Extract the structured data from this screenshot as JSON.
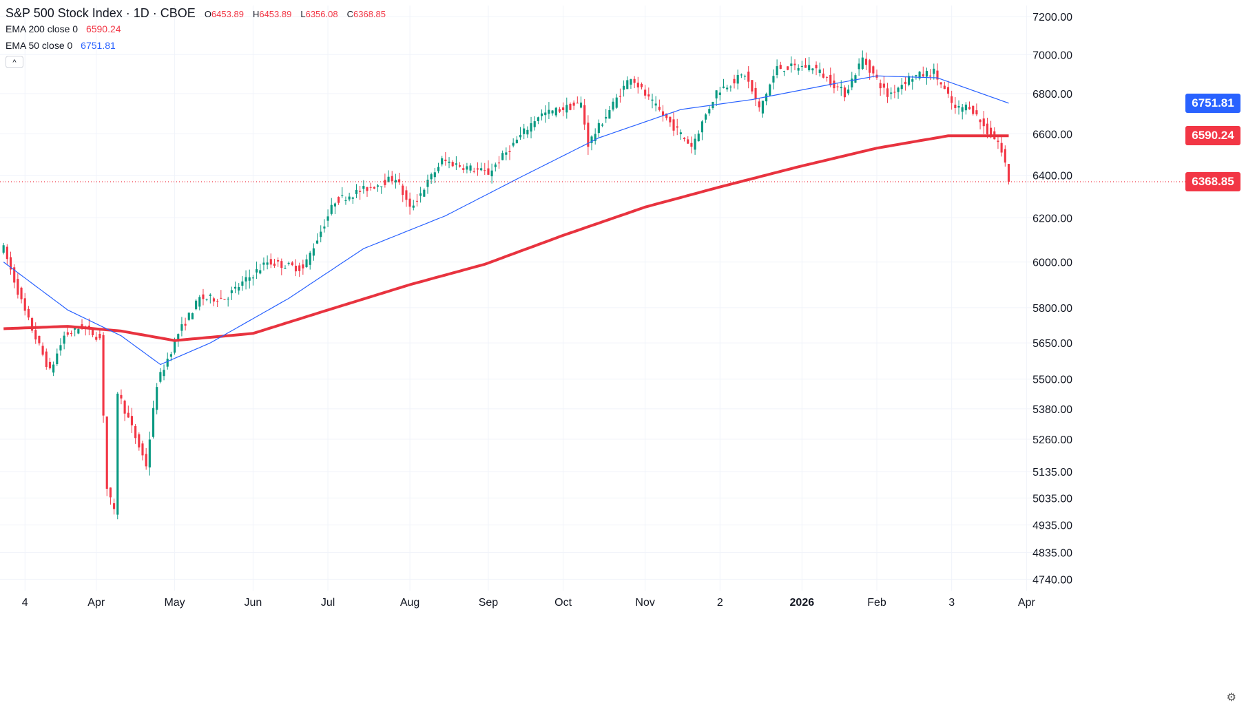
{
  "header": {
    "title": "S&P 500 Stock Index · 1D · CBOE",
    "ohlc": [
      {
        "k": "O",
        "v": "6453.89"
      },
      {
        "k": "H",
        "v": "6453.89"
      },
      {
        "k": "L",
        "v": "6356.08"
      },
      {
        "k": "C",
        "v": "6368.85"
      }
    ],
    "ema200": {
      "label": "EMA 200 close 0",
      "value": "6590.24"
    },
    "ema50": {
      "label": "EMA 50 close 0",
      "value": "6751.81"
    },
    "collapse_glyph": "^"
  },
  "price_tags": {
    "ema50": "6751.81",
    "ema200": "6590.24",
    "last": "6368.85"
  },
  "settings_glyph": "⚙",
  "colors": {
    "up": "#089981",
    "down": "#f23645",
    "ema200": "#e8333f",
    "ema50": "#2962ff",
    "grid": "#f0f3fa",
    "text": "#131722"
  },
  "chart_data": {
    "type": "candlestick",
    "title": "S&P 500 Stock Index · 1D · CBOE",
    "xlabel": "",
    "ylabel": "",
    "y_scale": "log",
    "ylim": [
      4700,
      7260
    ],
    "y_ticks": [
      "7200.00",
      "7000.00",
      "6800.00",
      "6600.00",
      "6400.00",
      "6200.00",
      "6000.00",
      "5800.00",
      "5650.00",
      "5500.00",
      "5380.00",
      "5260.00",
      "5135.00",
      "5035.00",
      "4935.00",
      "4835.00",
      "4740.00"
    ],
    "x_ticks": [
      {
        "label": "4",
        "date": "2025-03-04"
      },
      {
        "label": "Apr",
        "date": "2025-04-01"
      },
      {
        "label": "May",
        "date": "2025-05-01"
      },
      {
        "label": "Jun",
        "date": "2025-06-02"
      },
      {
        "label": "Jul",
        "date": "2025-07-01"
      },
      {
        "label": "Aug",
        "date": "2025-08-01"
      },
      {
        "label": "Sep",
        "date": "2025-09-02"
      },
      {
        "label": "Oct",
        "date": "2025-10-01"
      },
      {
        "label": "Nov",
        "date": "2025-11-03"
      },
      {
        "label": "2",
        "date": "2025-12-02"
      },
      {
        "label": "2026",
        "date": "2026-01-02"
      },
      {
        "label": "Feb",
        "date": "2026-02-02"
      },
      {
        "label": "3",
        "date": "2026-03-03"
      },
      {
        "label": "Apr",
        "date": "2026-04-01"
      }
    ],
    "price_keypoints": [
      [
        "2025-02-24",
        6060
      ],
      [
        "2025-03-04",
        5780
      ],
      [
        "2025-03-13",
        5530
      ],
      [
        "2025-03-19",
        5680
      ],
      [
        "2025-03-26",
        5720
      ],
      [
        "2025-04-02",
        5670
      ],
      [
        "2025-04-04",
        5070
      ],
      [
        "2025-04-08",
        4980
      ],
      [
        "2025-04-09",
        5450
      ],
      [
        "2025-04-21",
        5160
      ],
      [
        "2025-04-24",
        5480
      ],
      [
        "2025-05-02",
        5690
      ],
      [
        "2025-05-12",
        5840
      ],
      [
        "2025-05-21",
        5840
      ],
      [
        "2025-06-06",
        6000
      ],
      [
        "2025-06-20",
        5970
      ],
      [
        "2025-07-03",
        6280
      ],
      [
        "2025-07-28",
        6390
      ],
      [
        "2025-08-01",
        6240
      ],
      [
        "2025-08-14",
        6470
      ],
      [
        "2025-09-02",
        6410
      ],
      [
        "2025-09-22",
        6690
      ],
      [
        "2025-10-08",
        6750
      ],
      [
        "2025-10-10",
        6550
      ],
      [
        "2025-10-28",
        6890
      ],
      [
        "2025-11-04",
        6770
      ],
      [
        "2025-11-20",
        6540
      ],
      [
        "2025-12-01",
        6810
      ],
      [
        "2025-12-11",
        6900
      ],
      [
        "2025-12-17",
        6720
      ],
      [
        "2025-12-24",
        6930
      ],
      [
        "2026-01-07",
        6940
      ],
      [
        "2026-01-20",
        6800
      ],
      [
        "2026-01-27",
        6980
      ],
      [
        "2026-02-05",
        6790
      ],
      [
        "2026-02-13",
        6880
      ],
      [
        "2026-02-24",
        6910
      ],
      [
        "2026-03-04",
        6720
      ],
      [
        "2026-03-10",
        6740
      ],
      [
        "2026-03-17",
        6610
      ],
      [
        "2026-03-20",
        6560
      ],
      [
        "2026-03-24",
        6453.89
      ],
      [
        "2026-03-25",
        6368.85
      ]
    ],
    "last_candle": {
      "date": "2026-03-25",
      "open": 6453.89,
      "high": 6453.89,
      "low": 6356.08,
      "close": 6368.85
    },
    "series": [
      {
        "name": "EMA 200 close 0",
        "last": 6590.24,
        "keypoints": [
          [
            "2025-02-24",
            5710
          ],
          [
            "2025-03-20",
            5720
          ],
          [
            "2025-04-10",
            5700
          ],
          [
            "2025-05-01",
            5660
          ],
          [
            "2025-06-01",
            5690
          ],
          [
            "2025-07-01",
            5790
          ],
          [
            "2025-08-01",
            5900
          ],
          [
            "2025-09-01",
            5990
          ],
          [
            "2025-10-01",
            6120
          ],
          [
            "2025-11-01",
            6250
          ],
          [
            "2025-12-01",
            6340
          ],
          [
            "2026-01-01",
            6440
          ],
          [
            "2026-02-01",
            6530
          ],
          [
            "2026-03-01",
            6590
          ],
          [
            "2026-03-25",
            6590.24
          ]
        ]
      },
      {
        "name": "EMA 50 close 0",
        "last": 6751.81,
        "keypoints": [
          [
            "2025-02-24",
            6000
          ],
          [
            "2025-03-20",
            5790
          ],
          [
            "2025-04-10",
            5680
          ],
          [
            "2025-04-25",
            5560
          ],
          [
            "2025-05-15",
            5650
          ],
          [
            "2025-06-15",
            5840
          ],
          [
            "2025-07-15",
            6060
          ],
          [
            "2025-08-15",
            6210
          ],
          [
            "2025-09-15",
            6390
          ],
          [
            "2025-10-15",
            6580
          ],
          [
            "2025-11-15",
            6720
          ],
          [
            "2025-12-15",
            6770
          ],
          [
            "2026-01-15",
            6850
          ],
          [
            "2026-02-01",
            6890
          ],
          [
            "2026-02-25",
            6880
          ],
          [
            "2026-03-25",
            6751.81
          ]
        ]
      }
    ]
  }
}
